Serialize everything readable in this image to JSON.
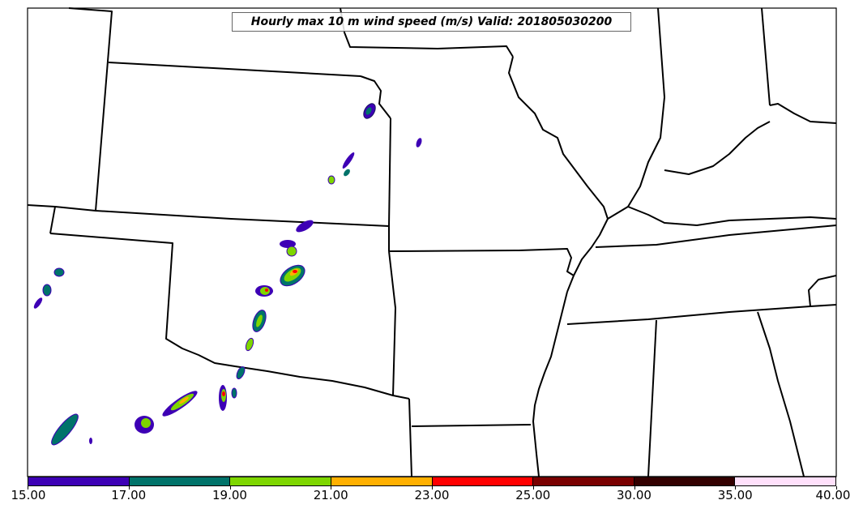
{
  "title": "Hourly max 10 m wind speed (m/s) Valid: 201805030200",
  "map": {
    "projection": "regional map of central/south-central United States with state boundaries"
  },
  "colorbar": {
    "boundaries": [
      "15.00",
      "17.00",
      "19.00",
      "21.00",
      "23.00",
      "25.00",
      "30.00",
      "35.00",
      "40.00"
    ],
    "colors": [
      "#3d00b5",
      "#00736a",
      "#7ed600",
      "#ffb000",
      "#ff0000",
      "#7a0000",
      "#330000",
      "#ffe0fb"
    ]
  },
  "contour_colors": {
    "outline": "#1a1a60",
    "level_15": "#3d00b5",
    "level_17": "#00736a",
    "level_19": "#7ed600",
    "level_21": "#ffb000",
    "level_23": "#ff0000"
  }
}
